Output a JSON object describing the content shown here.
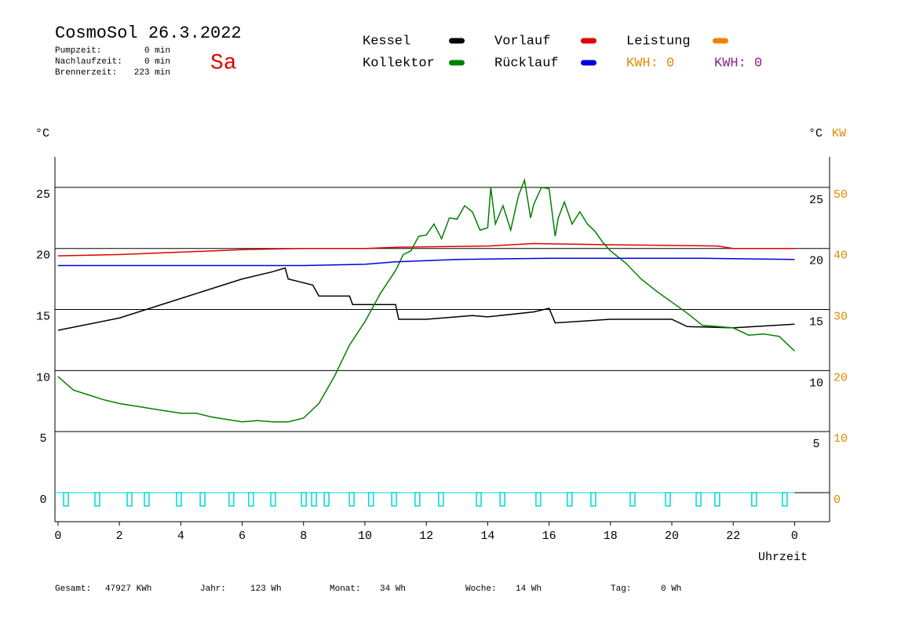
{
  "chart_data": {
    "type": "line",
    "title": "CosmoSol 26.3.2022",
    "day": "Sa",
    "stats": [
      {
        "label": "Pumpzeit:",
        "value": "0 min"
      },
      {
        "label": "Nachlaufzeit:",
        "value": "0 min"
      },
      {
        "label": "Brennerzeit:",
        "value": "223 min"
      }
    ],
    "kwh_labels": [
      {
        "text": "KWH: 0",
        "color": "#e08a00"
      },
      {
        "text": "KWH: 0",
        "color": "#8a2090"
      }
    ],
    "ylabel": "°C",
    "yright_label": "°C",
    "y2label": "KW",
    "xlabel": "Uhrzeit",
    "xlim": [
      -0.1,
      25.14
    ],
    "xticks": [
      0,
      2,
      4,
      6,
      8,
      10,
      12,
      14,
      16,
      18,
      20,
      22,
      {
        "value": 24,
        "label": "0"
      }
    ],
    "ylim": [
      -2.38,
      27.5
    ],
    "yticks": [
      0,
      5,
      10,
      15,
      20,
      25
    ],
    "yright_ticks": [
      5,
      10,
      15,
      20,
      25
    ],
    "y2lim": [
      -4.76,
      55
    ],
    "y2ticks": [
      0,
      10,
      20,
      30,
      40,
      50
    ],
    "grid": true,
    "series": [
      {
        "name": "Kessel",
        "color": "#000000",
        "x": [
          0,
          2,
          4,
          6,
          7,
          7.4,
          7.5,
          8.3,
          8.5,
          9.5,
          9.6,
          11,
          11.1,
          12,
          13.5,
          14,
          15.5,
          16,
          16.2,
          18,
          20,
          20.5,
          22,
          24
        ],
        "values": [
          13.3,
          14.3,
          15.9,
          17.5,
          18.1,
          18.4,
          17.5,
          17.0,
          16.1,
          16.1,
          15.4,
          15.4,
          14.2,
          14.2,
          14.5,
          14.4,
          14.8,
          15.1,
          13.9,
          14.2,
          14.2,
          13.6,
          13.5,
          13.8
        ]
      },
      {
        "name": "Vorlauf",
        "color": "#e00000",
        "x": [
          0,
          2,
          4,
          6,
          8,
          10,
          11,
          14,
          15.5,
          18,
          21.5,
          22,
          24
        ],
        "values": [
          19.4,
          19.5,
          19.7,
          19.9,
          20.0,
          20.0,
          20.1,
          20.2,
          20.4,
          20.3,
          20.2,
          20.0,
          20.0
        ]
      },
      {
        "name": "Leistung",
        "color": "#f08000",
        "axis": "y2",
        "x": [],
        "values": []
      },
      {
        "name": "Kollektor",
        "color": "#008000",
        "x": [
          0,
          0.5,
          1,
          1.5,
          2,
          2.5,
          3,
          3.5,
          4,
          4.5,
          5,
          5.5,
          6,
          6.5,
          7,
          7.5,
          8,
          8.5,
          9,
          9.5,
          10,
          10.5,
          11,
          11.25,
          11.5,
          11.75,
          12,
          12.25,
          12.5,
          12.75,
          13,
          13.25,
          13.5,
          13.75,
          14,
          14.1,
          14.25,
          14.5,
          14.75,
          15,
          15.2,
          15.4,
          15.5,
          15.75,
          16,
          16.2,
          16.3,
          16.5,
          16.75,
          17,
          17.25,
          17.5,
          17.75,
          18,
          18.5,
          19,
          19.5,
          20,
          20.5,
          21,
          21.5,
          22,
          22.5,
          23,
          23.5,
          24
        ],
        "values": [
          9.5,
          8.4,
          8.0,
          7.6,
          7.3,
          7.1,
          6.9,
          6.7,
          6.5,
          6.5,
          6.2,
          6.0,
          5.8,
          5.9,
          5.8,
          5.8,
          6.1,
          7.3,
          9.5,
          12.1,
          14.0,
          16.3,
          18.2,
          19.5,
          19.8,
          21.0,
          21.1,
          22.0,
          20.8,
          22.5,
          22.4,
          23.5,
          23.0,
          21.5,
          21.7,
          25.0,
          22.0,
          23.5,
          21.5,
          24.3,
          25.6,
          22.5,
          23.6,
          25.0,
          24.9,
          21.0,
          22.5,
          23.8,
          22.0,
          23.0,
          22.0,
          21.4,
          20.5,
          19.8,
          18.8,
          17.5,
          16.5,
          15.6,
          14.7,
          13.7,
          13.6,
          13.5,
          12.9,
          13.0,
          12.8,
          11.6
        ]
      },
      {
        "name": "Rücklauf",
        "color": "#0000e0",
        "x": [
          0,
          8,
          10,
          11,
          13,
          16,
          21,
          24
        ],
        "values": [
          18.6,
          18.6,
          18.7,
          18.9,
          19.1,
          19.2,
          19.2,
          19.1
        ]
      }
    ],
    "pulses": {
      "color": "#00d8d8",
      "x": [
        0.26,
        1.28,
        2.33,
        2.89,
        3.94,
        4.71,
        5.65,
        6.29,
        7.01,
        8.01,
        8.34,
        8.75,
        9.57,
        10.2,
        10.95,
        11.71,
        12.48,
        13.71,
        14.48,
        15.65,
        16.67,
        17.44,
        18.72,
        19.87,
        20.87,
        21.48,
        22.68,
        23.68
      ]
    },
    "footer": [
      {
        "label": "Gesamt:",
        "value": "47927 KWh"
      },
      {
        "label": "Jahr:",
        "value": "123 Wh"
      },
      {
        "label": "Monat:",
        "value": "34 Wh"
      },
      {
        "label": "Woche:",
        "value": "14 Wh"
      },
      {
        "label": "Tag:",
        "value": "0 Wh"
      }
    ]
  }
}
